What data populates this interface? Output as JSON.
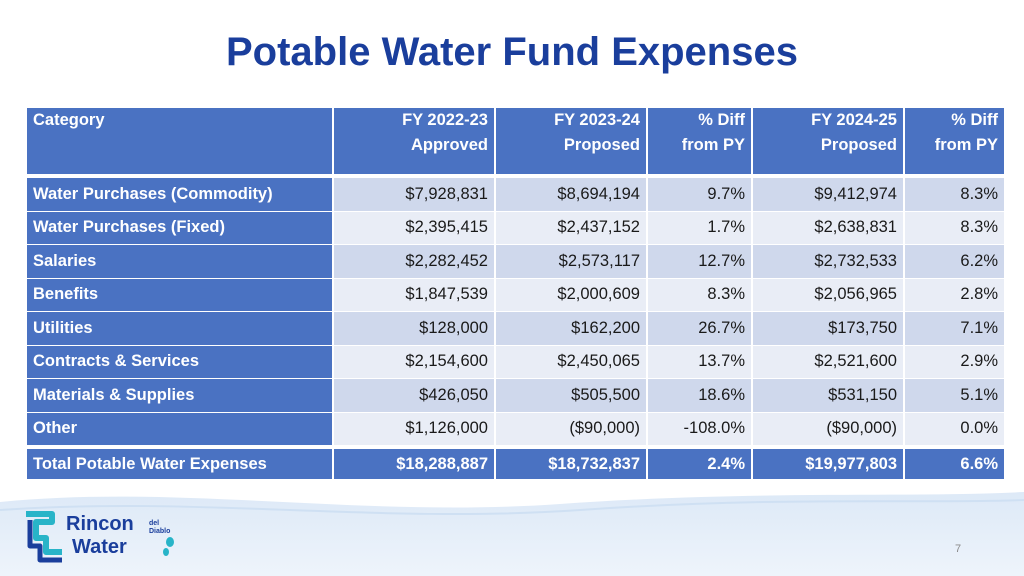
{
  "title": "Potable Water Fund Expenses",
  "table": {
    "headers": [
      {
        "line1": "Category",
        "line2": ""
      },
      {
        "line1": "FY 2022-23",
        "line2": "Approved"
      },
      {
        "line1": "FY 2023-24",
        "line2": "Proposed"
      },
      {
        "line1": "% Diff",
        "line2": "from PY"
      },
      {
        "line1": "FY 2024-25",
        "line2": "Proposed"
      },
      {
        "line1": "% Diff",
        "line2": "from PY"
      }
    ],
    "rows": [
      [
        "Water Purchases (Commodity)",
        "$7,928,831",
        "$8,694,194",
        "9.7%",
        "$9,412,974",
        "8.3%"
      ],
      [
        "Water Purchases (Fixed)",
        "$2,395,415",
        "$2,437,152",
        "1.7%",
        "$2,638,831",
        "8.3%"
      ],
      [
        "Salaries",
        "$2,282,452",
        "$2,573,117",
        "12.7%",
        "$2,732,533",
        "6.2%"
      ],
      [
        "Benefits",
        "$1,847,539",
        "$2,000,609",
        "8.3%",
        "$2,056,965",
        "2.8%"
      ],
      [
        "Utilities",
        "$128,000",
        "$162,200",
        "26.7%",
        "$173,750",
        "7.1%"
      ],
      [
        "Contracts & Services",
        "$2,154,600",
        "$2,450,065",
        "13.7%",
        "$2,521,600",
        "2.9%"
      ],
      [
        "Materials & Supplies",
        "$426,050",
        "$505,500",
        "18.6%",
        "$531,150",
        "5.1%"
      ],
      [
        "Other",
        "$1,126,000",
        "($90,000)",
        "-108.0%",
        "($90,000)",
        "0.0%"
      ]
    ],
    "total": [
      "Total Potable Water Expenses",
      "$18,288,887",
      "$18,732,837",
      "2.4%",
      "$19,977,803",
      "6.6%"
    ]
  },
  "logo": {
    "word1": "Rincon",
    "word2": "Water",
    "small1": "del",
    "small2": "Diablo"
  },
  "page_number": "7",
  "colors": {
    "title": "#1a3e9c",
    "header": "#4a72c2",
    "row_odd": "#cfd8ec",
    "row_even": "#e9edf6"
  }
}
